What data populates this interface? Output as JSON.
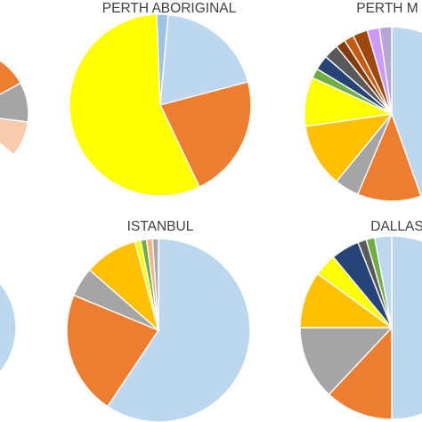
{
  "chart_data": [
    {
      "type": "pie",
      "title": "",
      "values": [
        5,
        12,
        10,
        9,
        64
      ],
      "colors": [
        "#BDD7EE",
        "#ED7D31",
        "#A5A5A5",
        "#F8CBAD",
        "#FFFFFF"
      ]
    },
    {
      "type": "pie",
      "title": "PERTH ABORIGINAL",
      "values": [
        19.5,
        22,
        56.5,
        2
      ],
      "colors": [
        "#BDD7EE",
        "#ED7D31",
        "#FFFF00",
        "#9DC3E6"
      ]
    },
    {
      "type": "pie",
      "title": "PERTH M",
      "values": [
        49,
        13,
        5,
        13,
        10,
        2,
        3,
        3,
        2,
        2,
        3,
        2.5,
        2.5
      ],
      "colors": [
        "#BDD7EE",
        "#ED7D31",
        "#A5A5A5",
        "#FFC000",
        "#FFFF00",
        "#70AD47",
        "#264478",
        "#595959",
        "#843C0C",
        "#C55A11",
        "#9E480E",
        "#CC99FF",
        "#B4A7D6"
      ]
    },
    {
      "type": "pie",
      "title": "",
      "values": [
        100
      ],
      "colors": [
        "#BDD7EE"
      ]
    },
    {
      "type": "pie",
      "title": "ISTANBUL",
      "values": [
        57,
        21,
        5,
        9,
        1,
        1,
        1,
        1
      ],
      "colors": [
        "#BDD7EE",
        "#ED7D31",
        "#A5A5A5",
        "#FFC000",
        "#FFFF00",
        "#70AD47",
        "#F4B183",
        "#A9A9A9"
      ]
    },
    {
      "type": "pie",
      "title": "DALLAS",
      "values": [
        50,
        12,
        13,
        10,
        4,
        5,
        1.5,
        1.5,
        3
      ],
      "colors": [
        "#BDD7EE",
        "#ED7D31",
        "#A5A5A5",
        "#FFC000",
        "#FFFF00",
        "#264478",
        "#595959",
        "#70AD47",
        "#BDD7EE"
      ]
    }
  ]
}
